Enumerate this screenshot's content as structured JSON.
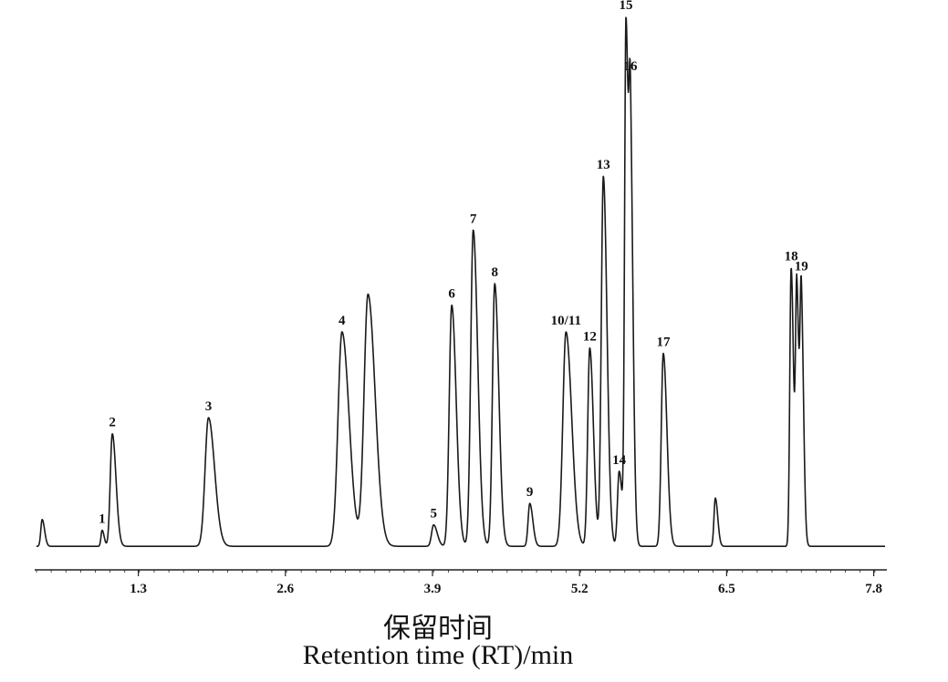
{
  "chart_data": {
    "type": "line",
    "xlabel_zh": "保留时间",
    "xlabel_en": "Retention time (RT)/min",
    "xlim": [
      0.4,
      7.9
    ],
    "x_ticks": [
      "1.3",
      "2.6",
      "3.9",
      "5.2",
      "6.5",
      "7.8"
    ],
    "x_tick_values": [
      1.3,
      2.6,
      3.9,
      5.2,
      6.5,
      7.8
    ],
    "ylim": [
      0,
      100
    ],
    "baseline": 1.5,
    "peaks": [
      {
        "label": "",
        "rt": 0.45,
        "height": 5,
        "width": 0.012
      },
      {
        "label": "1",
        "rt": 0.98,
        "height": 3,
        "width": 0.01
      },
      {
        "label": "2",
        "rt": 1.07,
        "height": 21,
        "width": 0.018
      },
      {
        "label": "3",
        "rt": 1.92,
        "height": 24,
        "width": 0.03
      },
      {
        "label": "4",
        "rt": 3.1,
        "height": 40,
        "width": 0.035
      },
      {
        "label": "",
        "rt": 3.33,
        "height": 47,
        "width": 0.035
      },
      {
        "label": "5",
        "rt": 3.91,
        "height": 4,
        "width": 0.018
      },
      {
        "label": "6",
        "rt": 4.07,
        "height": 45,
        "width": 0.022
      },
      {
        "label": "7",
        "rt": 4.26,
        "height": 59,
        "width": 0.022
      },
      {
        "label": "8",
        "rt": 4.45,
        "height": 49,
        "width": 0.02
      },
      {
        "label": "9",
        "rt": 4.76,
        "height": 8,
        "width": 0.015
      },
      {
        "label": "10/11",
        "rt": 5.08,
        "height": 40,
        "width": 0.028
      },
      {
        "label": "12",
        "rt": 5.29,
        "height": 37,
        "width": 0.018
      },
      {
        "label": "13",
        "rt": 5.41,
        "height": 69,
        "width": 0.018
      },
      {
        "label": "14",
        "rt": 5.55,
        "height": 14,
        "width": 0.015
      },
      {
        "label": "15",
        "rt": 5.61,
        "height": 97,
        "width": 0.012
      },
      {
        "label": "16",
        "rt": 5.65,
        "height": 70,
        "width": 0.013
      },
      {
        "label": "17",
        "rt": 5.94,
        "height": 36,
        "width": 0.018
      },
      {
        "label": "",
        "rt": 6.4,
        "height": 9,
        "width": 0.012
      },
      {
        "label": "18",
        "rt": 7.07,
        "height": 52,
        "width": 0.012
      },
      {
        "label": "",
        "rt": 7.12,
        "height": 47,
        "width": 0.011
      },
      {
        "label": "19",
        "rt": 7.16,
        "height": 44,
        "width": 0.011
      }
    ]
  }
}
